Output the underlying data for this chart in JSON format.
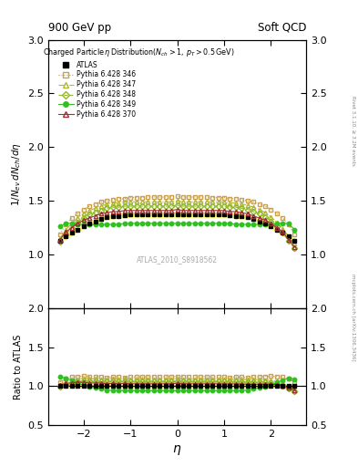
{
  "title_left": "900 GeV pp",
  "title_right": "Soft QCD",
  "right_label_top": "Rivet 3.1.10, ≥ 3.2M events",
  "right_label_bot": "mcplots.cern.ch [arXiv:1306.3436]",
  "watermark": "ATLAS_2010_S8918562",
  "ylabel_main": "$1/N_{ev}\\,dN_{ch}/d\\eta$",
  "ylabel_ratio": "Ratio to ATLAS",
  "xlabel": "$\\eta$",
  "xlim": [
    -2.75,
    2.75
  ],
  "ylim_main": [
    0.5,
    3.0
  ],
  "ylim_ratio": [
    0.5,
    2.0
  ],
  "yticks_main": [
    1.0,
    1.5,
    2.0,
    2.5,
    3.0
  ],
  "yticks_ratio": [
    0.5,
    1.0,
    1.5,
    2.0
  ],
  "xticks": [
    -2,
    -1,
    0,
    1,
    2
  ],
  "series_colors": [
    "#000000",
    "#c8a050",
    "#b0b830",
    "#90b828",
    "#30c020",
    "#a03030"
  ],
  "series_markers": [
    "s",
    "s",
    "^",
    "D",
    "o",
    "^"
  ],
  "series_labels": [
    "ATLAS",
    "Pythia 6.428 346",
    "Pythia 6.428 347",
    "Pythia 6.428 348",
    "Pythia 6.428 349",
    "Pythia 6.428 370"
  ],
  "series_linestyles": [
    "none",
    ":",
    "-.",
    "--",
    "-",
    "-"
  ],
  "series_filled": [
    true,
    false,
    false,
    false,
    true,
    false
  ],
  "atlas_eta": [
    -2.5,
    -2.375,
    -2.25,
    -2.125,
    -2.0,
    -1.875,
    -1.75,
    -1.625,
    -1.5,
    -1.375,
    -1.25,
    -1.125,
    -1.0,
    -0.875,
    -0.75,
    -0.625,
    -0.5,
    -0.375,
    -0.25,
    -0.125,
    0.0,
    0.125,
    0.25,
    0.375,
    0.5,
    0.625,
    0.75,
    0.875,
    1.0,
    1.125,
    1.25,
    1.375,
    1.5,
    1.625,
    1.75,
    1.875,
    2.0,
    2.125,
    2.25,
    2.375,
    2.5
  ],
  "atlas_val": [
    1.13,
    1.17,
    1.2,
    1.23,
    1.26,
    1.29,
    1.31,
    1.33,
    1.35,
    1.355,
    1.36,
    1.365,
    1.37,
    1.37,
    1.37,
    1.37,
    1.37,
    1.37,
    1.37,
    1.37,
    1.37,
    1.37,
    1.37,
    1.37,
    1.37,
    1.37,
    1.37,
    1.37,
    1.37,
    1.365,
    1.36,
    1.355,
    1.35,
    1.33,
    1.31,
    1.29,
    1.26,
    1.23,
    1.2,
    1.17,
    1.13
  ],
  "atlas_err": [
    0.025,
    0.025,
    0.025,
    0.025,
    0.025,
    0.025,
    0.025,
    0.025,
    0.025,
    0.025,
    0.025,
    0.025,
    0.025,
    0.025,
    0.025,
    0.025,
    0.025,
    0.025,
    0.025,
    0.025,
    0.025,
    0.025,
    0.025,
    0.025,
    0.025,
    0.025,
    0.025,
    0.025,
    0.025,
    0.025,
    0.025,
    0.025,
    0.025,
    0.025,
    0.025,
    0.025,
    0.025,
    0.025,
    0.025,
    0.025,
    0.025
  ],
  "p346_val": [
    1.19,
    1.28,
    1.34,
    1.38,
    1.42,
    1.45,
    1.47,
    1.49,
    1.5,
    1.51,
    1.52,
    1.52,
    1.53,
    1.53,
    1.53,
    1.535,
    1.535,
    1.535,
    1.535,
    1.535,
    1.54,
    1.535,
    1.535,
    1.535,
    1.535,
    1.535,
    1.53,
    1.53,
    1.53,
    1.52,
    1.52,
    1.51,
    1.5,
    1.49,
    1.47,
    1.45,
    1.42,
    1.38,
    1.34,
    1.28,
    1.19
  ],
  "p347_val": [
    1.15,
    1.23,
    1.29,
    1.34,
    1.38,
    1.41,
    1.43,
    1.45,
    1.47,
    1.48,
    1.48,
    1.49,
    1.49,
    1.49,
    1.49,
    1.49,
    1.49,
    1.49,
    1.49,
    1.49,
    1.5,
    1.49,
    1.49,
    1.49,
    1.49,
    1.49,
    1.49,
    1.49,
    1.49,
    1.48,
    1.48,
    1.47,
    1.46,
    1.44,
    1.42,
    1.39,
    1.35,
    1.3,
    1.24,
    1.17,
    1.1
  ],
  "p348_val": [
    1.12,
    1.19,
    1.25,
    1.3,
    1.34,
    1.37,
    1.39,
    1.41,
    1.43,
    1.44,
    1.44,
    1.45,
    1.45,
    1.45,
    1.45,
    1.45,
    1.45,
    1.45,
    1.45,
    1.45,
    1.46,
    1.45,
    1.45,
    1.45,
    1.45,
    1.45,
    1.45,
    1.45,
    1.45,
    1.44,
    1.44,
    1.43,
    1.42,
    1.4,
    1.38,
    1.35,
    1.31,
    1.26,
    1.2,
    1.13,
    1.06
  ],
  "p349_val": [
    1.26,
    1.29,
    1.29,
    1.28,
    1.28,
    1.28,
    1.28,
    1.28,
    1.28,
    1.28,
    1.28,
    1.29,
    1.29,
    1.29,
    1.29,
    1.29,
    1.29,
    1.29,
    1.29,
    1.29,
    1.29,
    1.29,
    1.29,
    1.29,
    1.29,
    1.29,
    1.29,
    1.29,
    1.29,
    1.29,
    1.28,
    1.28,
    1.28,
    1.28,
    1.28,
    1.28,
    1.28,
    1.29,
    1.29,
    1.29,
    1.23
  ],
  "p370_val": [
    1.14,
    1.21,
    1.25,
    1.29,
    1.32,
    1.34,
    1.36,
    1.38,
    1.39,
    1.4,
    1.4,
    1.41,
    1.41,
    1.41,
    1.41,
    1.41,
    1.41,
    1.41,
    1.41,
    1.41,
    1.42,
    1.41,
    1.41,
    1.41,
    1.41,
    1.41,
    1.41,
    1.41,
    1.41,
    1.4,
    1.4,
    1.39,
    1.38,
    1.36,
    1.34,
    1.32,
    1.29,
    1.25,
    1.21,
    1.14,
    1.07
  ],
  "err_band_color": "#ffff80",
  "background_color": "#ffffff"
}
